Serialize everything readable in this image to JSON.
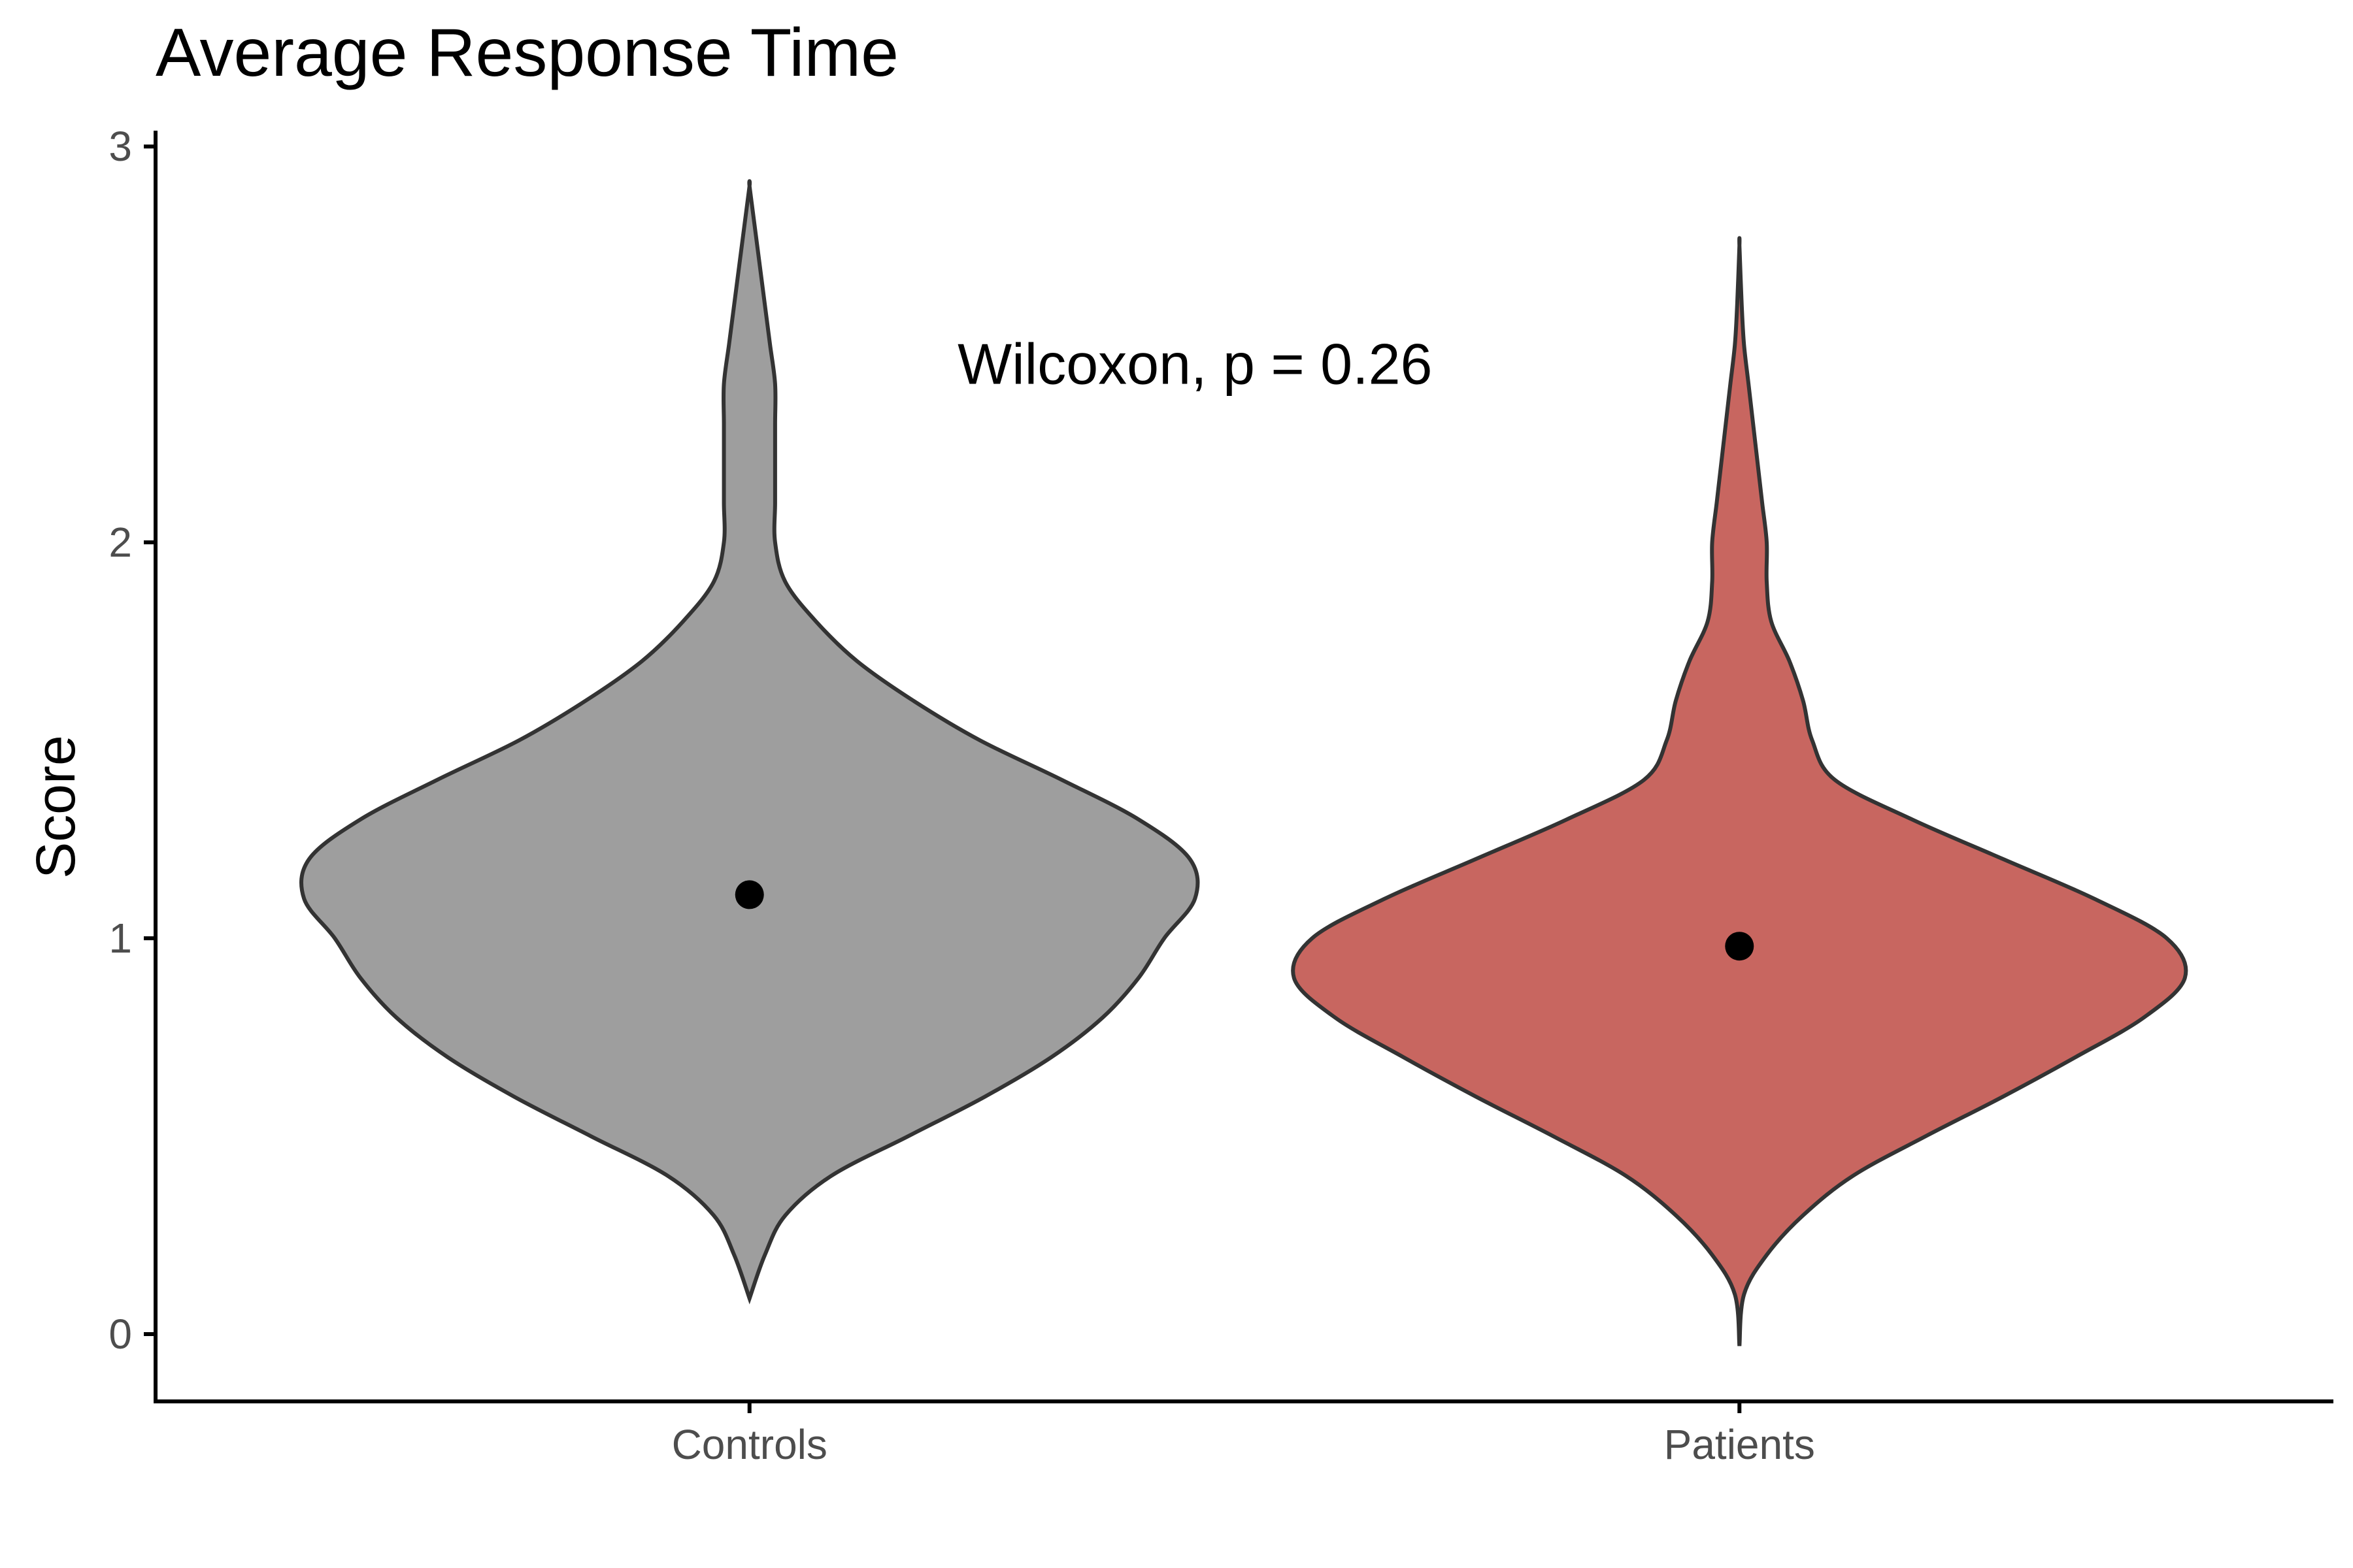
{
  "chart_data": {
    "type": "violin",
    "title": "Average Response Time",
    "xlabel": "",
    "ylabel": "Score",
    "categories": [
      "Controls",
      "Patients"
    ],
    "ylim": [
      -0.17,
      3.04
    ],
    "yticks": [
      0,
      1,
      2,
      3
    ],
    "grid": false,
    "legend": "none",
    "annotation": "Wilcoxon, p = 0.26",
    "annotation_position": {
      "x": 1.45,
      "y": 2.45
    },
    "point_color": "#000000",
    "outline_color": "#333333",
    "series": [
      {
        "category": "Controls",
        "fill": "#9e9e9e",
        "mean": 1.11,
        "density_profile": [
          [
            0.09,
            0.0
          ],
          [
            0.2,
            0.03
          ],
          [
            0.3,
            0.07
          ],
          [
            0.4,
            0.16
          ],
          [
            0.5,
            0.31
          ],
          [
            0.6,
            0.46
          ],
          [
            0.7,
            0.59
          ],
          [
            0.8,
            0.69
          ],
          [
            0.9,
            0.76
          ],
          [
            1.0,
            0.81
          ],
          [
            1.1,
            0.87
          ],
          [
            1.2,
            0.86
          ],
          [
            1.3,
            0.76
          ],
          [
            1.4,
            0.61
          ],
          [
            1.5,
            0.45
          ],
          [
            1.6,
            0.32
          ],
          [
            1.7,
            0.21
          ],
          [
            1.8,
            0.13
          ],
          [
            1.9,
            0.07
          ],
          [
            2.0,
            0.05
          ],
          [
            2.1,
            0.05
          ],
          [
            2.2,
            0.05
          ],
          [
            2.3,
            0.05
          ],
          [
            2.4,
            0.05
          ],
          [
            2.5,
            0.04
          ],
          [
            2.6,
            0.03
          ],
          [
            2.7,
            0.02
          ],
          [
            2.8,
            0.01
          ],
          [
            2.9,
            0.0
          ]
        ]
      },
      {
        "category": "Patients",
        "fill": "#c86660",
        "mean": 0.98,
        "density_profile": [
          [
            -0.03,
            0.0
          ],
          [
            0.1,
            0.01
          ],
          [
            0.2,
            0.06
          ],
          [
            0.3,
            0.14
          ],
          [
            0.4,
            0.25
          ],
          [
            0.5,
            0.41
          ],
          [
            0.6,
            0.58
          ],
          [
            0.7,
            0.74
          ],
          [
            0.8,
            0.89
          ],
          [
            0.9,
            0.98
          ],
          [
            1.0,
            0.94
          ],
          [
            1.1,
            0.78
          ],
          [
            1.2,
            0.58
          ],
          [
            1.3,
            0.38
          ],
          [
            1.4,
            0.21
          ],
          [
            1.5,
            0.16
          ],
          [
            1.6,
            0.14
          ],
          [
            1.7,
            0.11
          ],
          [
            1.8,
            0.07
          ],
          [
            1.9,
            0.06
          ],
          [
            2.0,
            0.06
          ],
          [
            2.1,
            0.05
          ],
          [
            2.2,
            0.04
          ],
          [
            2.3,
            0.03
          ],
          [
            2.4,
            0.02
          ],
          [
            2.5,
            0.01
          ],
          [
            2.6,
            0.005
          ],
          [
            2.75,
            0.0
          ]
        ]
      }
    ]
  }
}
